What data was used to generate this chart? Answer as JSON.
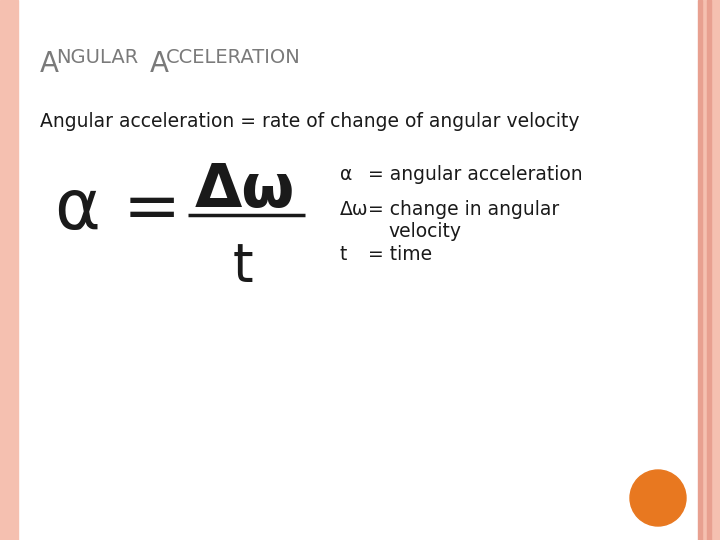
{
  "bg_color": "#ffffff",
  "border_color": "#f5c0b0",
  "title_color": "#7a7a7a",
  "subtitle_color": "#1a1a1a",
  "text_color": "#1a1a1a",
  "orange_dot_color": "#e87820",
  "subtitle": "Angular acceleration = rate of change of angular velocity",
  "def_alpha_left": "α",
  "def_alpha_right": "= angular acceleration",
  "def_dw_left": "Δω",
  "def_dw_right1": "= change in angular",
  "def_dw_right2": "velocity",
  "def_t_left": "t",
  "def_t_right": "= time"
}
